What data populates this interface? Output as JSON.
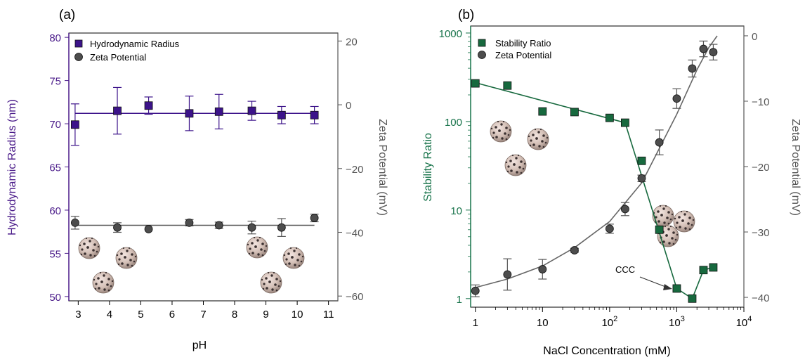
{
  "chart_data": [
    {
      "panel_label": "(a)",
      "type": "scatter",
      "xlabel": "pH",
      "xlim": [
        2.7,
        11.3
      ],
      "x_ticks": [
        "3",
        "4",
        "5",
        "6",
        "7",
        "8",
        "9",
        "10",
        "11"
      ],
      "ylabel_left": "Hydrodynamic Radius (nm)",
      "ylim_left": [
        49.5,
        80.5
      ],
      "left_ticks": [
        "50",
        "55",
        "60",
        "65",
        "70",
        "75",
        "80"
      ],
      "ylabel_right": "Zeta Potential (mV)",
      "ylim_right": [
        -61.5,
        22.5
      ],
      "right_ticks": [
        "20",
        "0",
        "-20",
        "-40",
        "-60"
      ],
      "grid": false,
      "legend_position": "top-left",
      "colors": {
        "left_axis": "#4b1c8a",
        "right_axis": "#555555",
        "series1": "#3c138a",
        "series2": "#4d4d4d"
      },
      "series": [
        {
          "name": "Hydrodynamic Radius",
          "marker": "square",
          "axis": "left",
          "x": [
            2.9,
            4.25,
            5.25,
            6.55,
            7.5,
            8.55,
            9.5,
            10.55
          ],
          "y": [
            69.9,
            71.5,
            72.1,
            71.2,
            71.4,
            71.5,
            71.0,
            71.0
          ],
          "err": [
            2.4,
            2.7,
            1.0,
            2.0,
            2.0,
            1.1,
            1.0,
            1.0
          ],
          "fit": {
            "type": "constant",
            "y": 71.2
          }
        },
        {
          "name": "Zeta Potential",
          "marker": "circle",
          "axis": "right",
          "x": [
            2.9,
            4.25,
            5.25,
            6.55,
            7.5,
            8.55,
            9.5,
            10.55
          ],
          "y": [
            -37.0,
            -38.5,
            -39.0,
            -37.0,
            -37.8,
            -38.5,
            -38.5,
            -35.5
          ],
          "err": [
            2.0,
            1.5,
            0,
            1.0,
            1.0,
            2.0,
            2.8,
            1.2
          ],
          "fit": {
            "type": "constant",
            "y": -37.8
          }
        }
      ]
    },
    {
      "panel_label": "(b)",
      "type": "scatter",
      "xlabel": "NaCl Concentration (mM)",
      "x_scale": "log",
      "xlim": [
        0.85,
        10000
      ],
      "x_ticks": [
        {
          "base": "1",
          "exp": ""
        },
        {
          "base": "10",
          "exp": ""
        },
        {
          "base": "10",
          "exp": "2"
        },
        {
          "base": "10",
          "exp": "3"
        },
        {
          "base": "10",
          "exp": "4"
        }
      ],
      "ylabel_left": "Stability Ratio",
      "y_scale_left": "log",
      "ylim_left": [
        0.8,
        1200
      ],
      "left_ticks": [
        "1",
        "10",
        "100",
        "1000"
      ],
      "ylabel_right": "Zeta Potential (mV)",
      "ylim_right": [
        -41.5,
        1.5
      ],
      "right_ticks": [
        "0",
        "-10",
        "-20",
        "-30",
        "-40"
      ],
      "grid": false,
      "legend_position": "top-left",
      "colors": {
        "left_axis": "#17734a",
        "right_axis": "#555555",
        "series1": "#17693e",
        "series2": "#4d4d4d"
      },
      "annotation": {
        "text": "CCC",
        "points_to_x": 1000,
        "points_to_y": 1.3
      },
      "series": [
        {
          "name": "Stability Ratio",
          "marker": "square",
          "axis": "left",
          "x": [
            1,
            3,
            10,
            30,
            100,
            170,
            300,
            550,
            1000,
            1700,
            2500,
            3500
          ],
          "y": [
            270,
            255,
            130,
            128,
            110,
            97,
            36,
            6.0,
            1.3,
            1.0,
            2.1,
            2.25
          ],
          "fit": {
            "type": "piecewise",
            "x": [
              1,
              170,
              1000,
              1700,
              2500,
              3500
            ],
            "y": [
              275,
              97,
              1.3,
              1.0,
              2.1,
              2.25
            ]
          }
        },
        {
          "name": "Zeta Potential",
          "marker": "circle",
          "axis": "right",
          "x": [
            1,
            3,
            10,
            30,
            100,
            170,
            300,
            550,
            1000,
            1700,
            2500,
            3500
          ],
          "y": [
            -39,
            -36.5,
            -35.7,
            -32.8,
            -29.5,
            -26.5,
            -21.8,
            -16.3,
            -9.6,
            -5.0,
            -2.0,
            -2.5
          ],
          "err": [
            0.9,
            2.4,
            1.5,
            0.3,
            0.7,
            1.0,
            0.5,
            1.9,
            1.5,
            1.3,
            1.2,
            1.2
          ],
          "fit": {
            "type": "curve",
            "x": [
              1,
              3,
              10,
              30,
              100,
              300,
              1000,
              2000,
              3000,
              4000
            ],
            "y": [
              -38.5,
              -37.2,
              -35.2,
              -32.4,
              -28.4,
              -22.5,
              -12.0,
              -5.2,
              -1.8,
              0
            ]
          }
        }
      ]
    }
  ]
}
